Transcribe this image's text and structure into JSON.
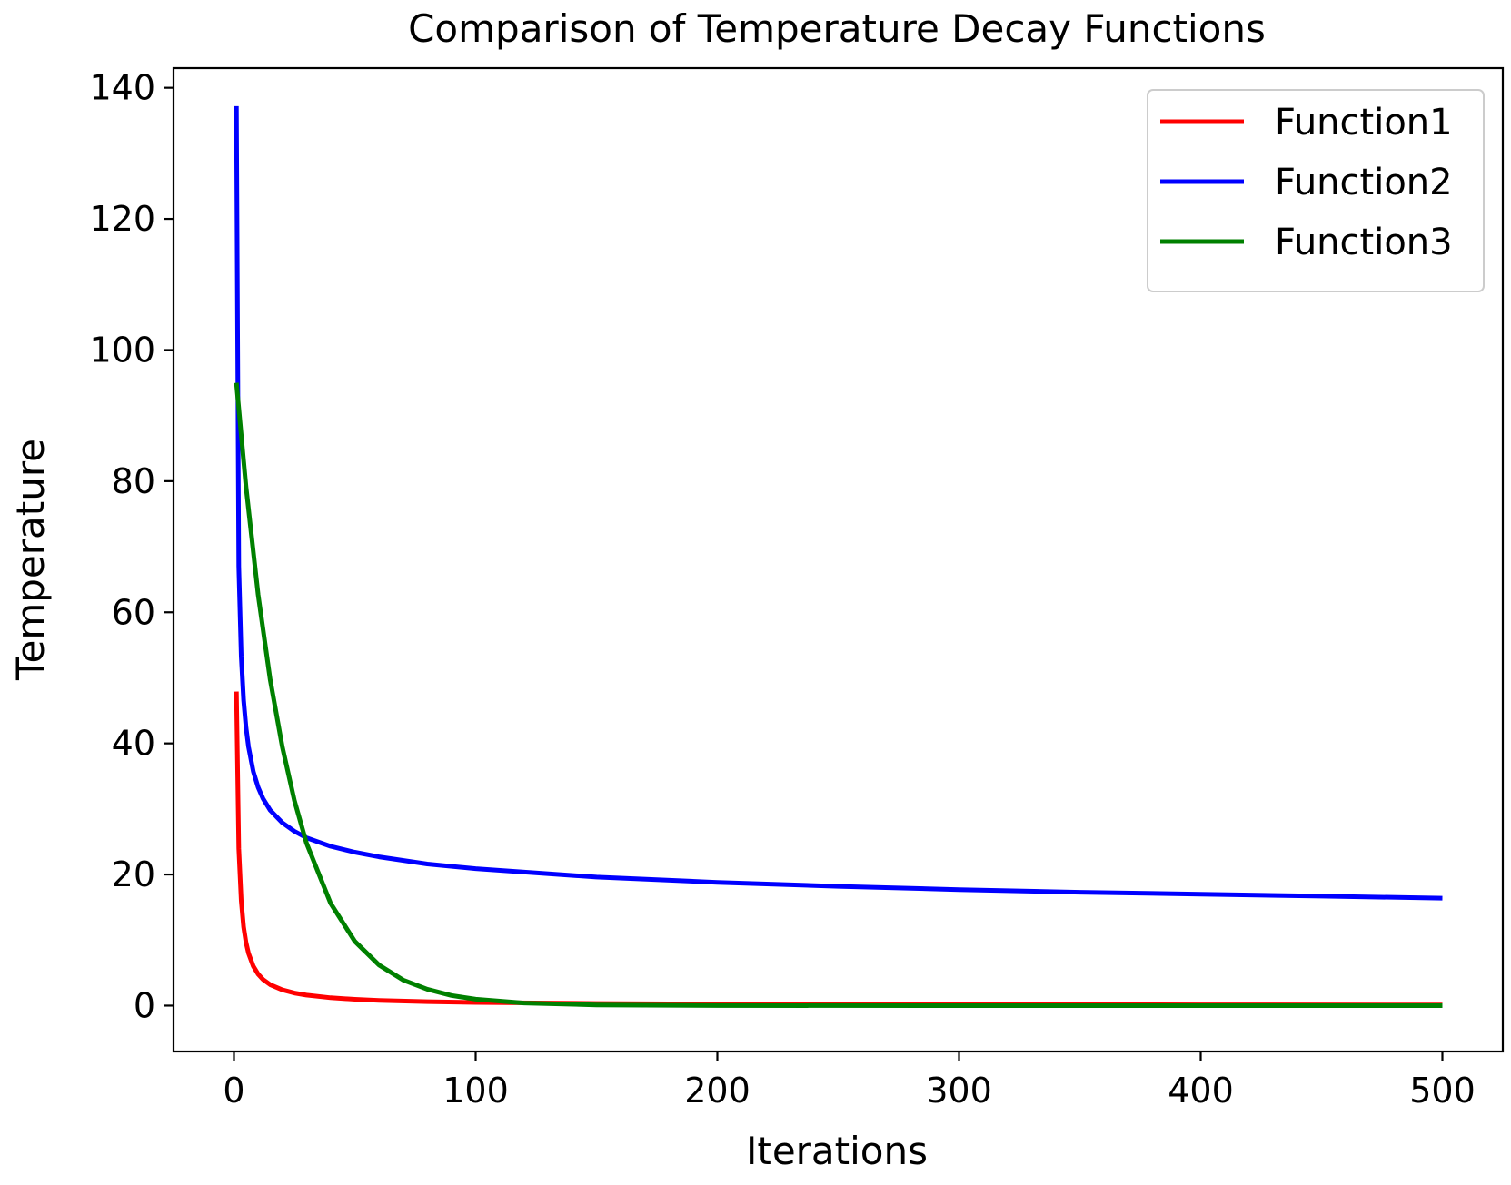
{
  "chart_data": {
    "type": "line",
    "title": "Comparison of Temperature Decay Functions",
    "xlabel": "Iterations",
    "ylabel": "Temperature",
    "xlim": [
      -25,
      525
    ],
    "ylim": [
      -7,
      143
    ],
    "xticks": [
      0,
      100,
      200,
      300,
      400,
      500
    ],
    "yticks": [
      0,
      20,
      40,
      60,
      80,
      100,
      120,
      140
    ],
    "grid": false,
    "legend_position": "top-right",
    "series": [
      {
        "name": "Function1",
        "color": "#ff0000",
        "x": [
          1,
          2,
          3,
          4,
          5,
          6,
          8,
          10,
          12,
          15,
          20,
          25,
          30,
          40,
          50,
          60,
          80,
          100,
          150,
          200,
          300,
          400,
          500
        ],
        "y": [
          47.9,
          24.0,
          16.0,
          12.0,
          9.6,
          8.0,
          6.0,
          4.8,
          4.0,
          3.2,
          2.4,
          1.92,
          1.6,
          1.2,
          0.96,
          0.8,
          0.6,
          0.48,
          0.32,
          0.24,
          0.16,
          0.12,
          0.096
        ]
      },
      {
        "name": "Function2",
        "color": "#0000ff",
        "x": [
          1,
          2,
          3,
          4,
          5,
          6,
          8,
          10,
          12,
          15,
          20,
          25,
          30,
          40,
          50,
          60,
          80,
          100,
          150,
          200,
          250,
          300,
          350,
          400,
          450,
          500
        ],
        "y": [
          137.2,
          67.0,
          53.3,
          46.6,
          42.4,
          39.5,
          35.7,
          33.3,
          31.6,
          29.8,
          27.9,
          26.6,
          25.6,
          24.3,
          23.4,
          22.7,
          21.6,
          20.9,
          19.6,
          18.8,
          18.2,
          17.7,
          17.3,
          17.0,
          16.7,
          16.4
        ]
      },
      {
        "name": "Function3",
        "color": "#008000",
        "x": [
          1,
          5,
          10,
          15,
          20,
          25,
          30,
          40,
          50,
          60,
          70,
          80,
          90,
          100,
          120,
          150,
          200,
          300,
          400,
          500
        ],
        "y": [
          95.0,
          79.1,
          62.7,
          49.7,
          39.5,
          31.3,
          24.8,
          15.6,
          9.8,
          6.2,
          3.9,
          2.5,
          1.55,
          0.98,
          0.39,
          0.1,
          0.01,
          0.0,
          0.0,
          0.0
        ]
      }
    ]
  }
}
